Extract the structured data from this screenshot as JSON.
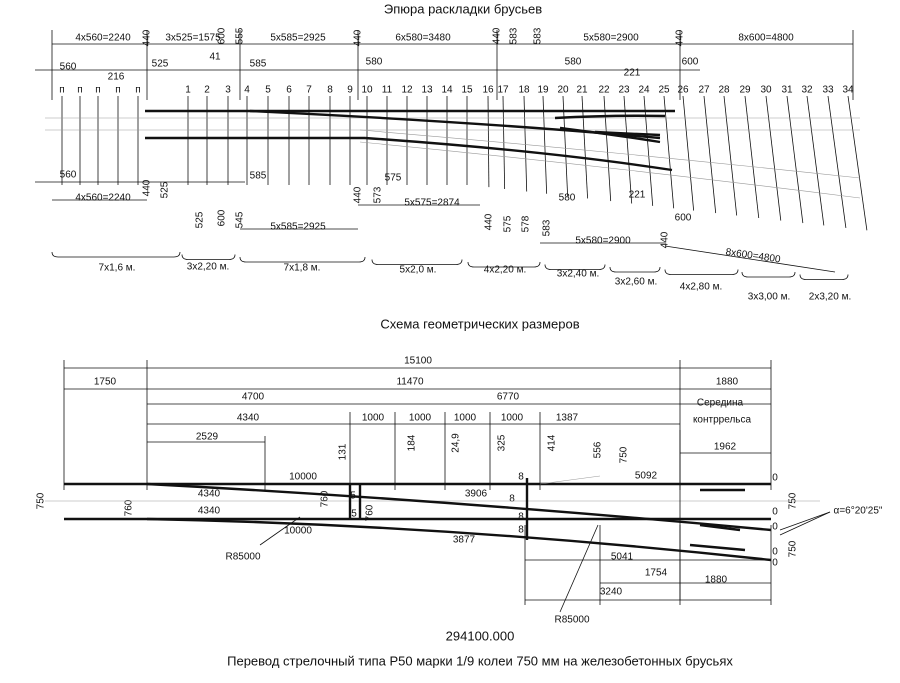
{
  "top": {
    "title": "Эпюра раскладки брусьев",
    "upper_dims": [
      "4x560=2240",
      "440",
      "3x525=1575",
      "600",
      "555",
      "5x585=2925",
      "440",
      "6x580=3480",
      "440",
      "583",
      "583",
      "5x580=2900",
      "440",
      "8x600=4800"
    ],
    "upper_dims2": [
      "560",
      "525",
      "41",
      "585",
      "216",
      "580",
      "580",
      "221",
      "600"
    ],
    "sleeper_numbers": [
      "п",
      "п",
      "п",
      "п",
      "п",
      "1",
      "2",
      "3",
      "4",
      "5",
      "6",
      "7",
      "8",
      "9",
      "10",
      "11",
      "12",
      "13",
      "14",
      "15",
      "16",
      "17",
      "18",
      "19",
      "20",
      "21",
      "22",
      "23",
      "24",
      "25",
      "26",
      "27",
      "28",
      "29",
      "30",
      "31",
      "32",
      "33",
      "34"
    ],
    "lower_dims": [
      "560",
      "4x560=2240",
      "440",
      "525",
      "525",
      "600",
      "545",
      "585",
      "5x585=2925",
      "440",
      "573",
      "575",
      "5x575=2874",
      "440",
      "575",
      "578",
      "583",
      "580",
      "221",
      "600",
      "5x580=2900",
      "440",
      "8x600=4800"
    ],
    "length_groups": [
      "7x1,6 м.",
      "3x2,20 м.",
      "7x1,8 м.",
      "5x2,0 м.",
      "4x2,20 м.",
      "3x2,40 м.",
      "3x2,60 м.",
      "4x2,80 м.",
      "3x3,00 м.",
      "2x3,20 м."
    ]
  },
  "bottom": {
    "title": "Схема геометрических размеров",
    "dims": [
      "15100",
      "1750",
      "11470",
      "1880",
      "4700",
      "6770",
      "4340",
      "1000",
      "1000",
      "1000",
      "1000",
      "1387",
      "2529",
      "1962",
      "131",
      "184",
      "24,9",
      "325",
      "414",
      "556",
      "750",
      "10000",
      "4340",
      "4340",
      "10000",
      "3906",
      "3877",
      "5092",
      "5041",
      "760",
      "760",
      "760",
      "750",
      "750",
      "750",
      "0",
      "0",
      "0",
      "0",
      "0",
      "5",
      "5",
      "8",
      "8",
      "8",
      "8",
      "R85000",
      "R85000",
      "1754",
      "1880",
      "3240"
    ],
    "note": [
      "Середина",
      "контррельса"
    ],
    "angle": "α=6°20'25\""
  },
  "footer": {
    "code": "294100.000",
    "caption": "Перевод стрелочный типа Р50 марки 1/9 колеи 750 мм на железобетонных брусьях"
  }
}
